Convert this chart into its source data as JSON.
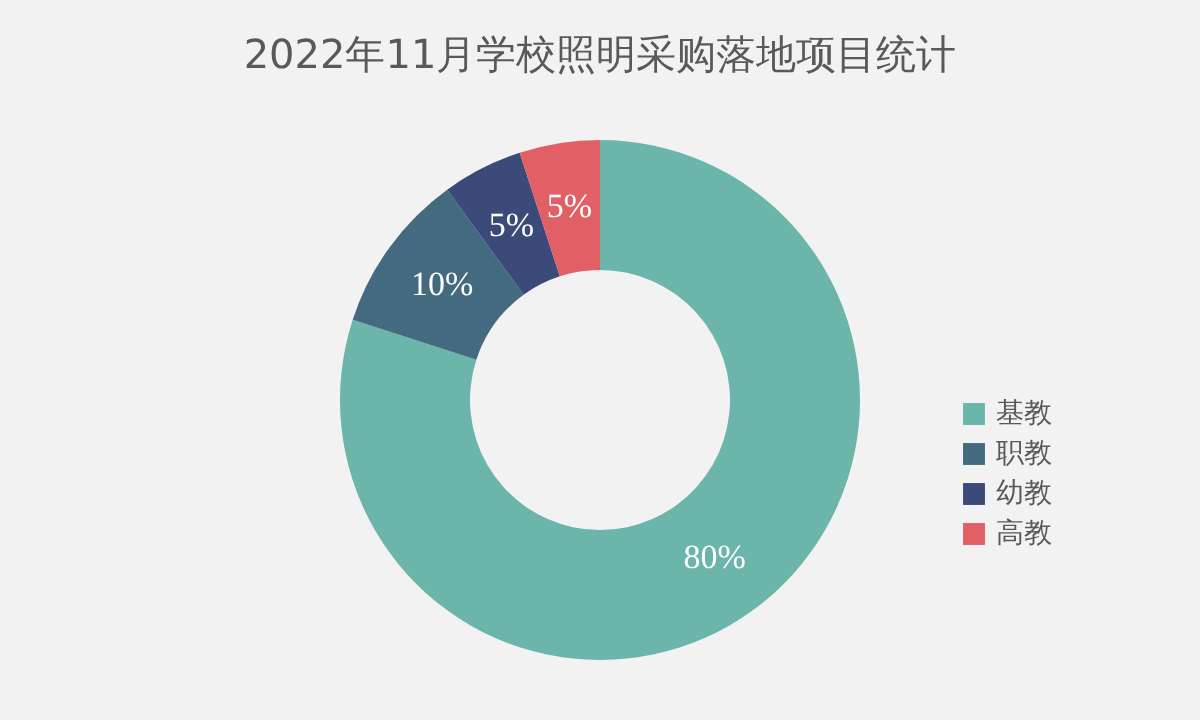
{
  "chart_data": {
    "type": "donut",
    "title": "2022年11月学校照明采购落地项目统计",
    "categories": [
      "基教",
      "职教",
      "幼教",
      "高教"
    ],
    "values": [
      80,
      10,
      5,
      5
    ],
    "colors": [
      "#6bb5aa",
      "#436a7e",
      "#3c4a7a",
      "#e06066"
    ],
    "value_labels": [
      "80%",
      "10%",
      "5%",
      "5%"
    ],
    "legend": "right"
  }
}
